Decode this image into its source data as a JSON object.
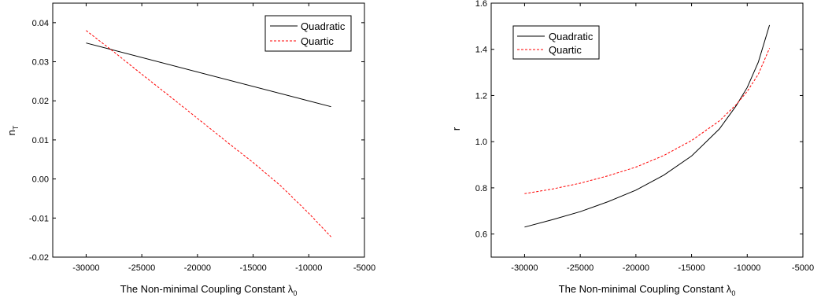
{
  "chart_data": [
    {
      "type": "line",
      "title": "",
      "xlabel": "The Non-minimal Coupling Constant λ",
      "xlabel_subscript": "0",
      "ylabel": "n",
      "ylabel_subscript": "T",
      "xlim": [
        -33000,
        -5000
      ],
      "ylim": [
        -0.02,
        0.045
      ],
      "xticks": [
        -30000,
        -25000,
        -20000,
        -15000,
        -10000,
        -5000
      ],
      "yticks": [
        -0.02,
        -0.01,
        0.0,
        0.01,
        0.02,
        0.03,
        0.04
      ],
      "xtick_labels": [
        "-30000",
        "-25000",
        "-20000",
        "-15000",
        "-10000",
        "-5000"
      ],
      "ytick_labels": [
        "-0.02",
        "-0.01",
        "0.00",
        "0.01",
        "0.02",
        "0.03",
        "0.04"
      ],
      "grid": false,
      "legend_position": "top-right",
      "series": [
        {
          "name": "Quadratic",
          "color": "#000000",
          "dash": "solid",
          "x": [
            -30000,
            -8000
          ],
          "y": [
            0.0348,
            0.0185
          ]
        },
        {
          "name": "Quartic",
          "color": "#ff0000",
          "dash": "dashed",
          "x": [
            -30000,
            -27500,
            -25000,
            -22500,
            -20000,
            -17500,
            -15000,
            -12500,
            -10000,
            -8000
          ],
          "y": [
            0.038,
            0.0325,
            0.0268,
            0.0212,
            0.0155,
            0.0098,
            0.0042,
            -0.0018,
            -0.0088,
            -0.0148
          ]
        }
      ]
    },
    {
      "type": "line",
      "title": "",
      "xlabel": "The Non-minimal Coupling Constant λ",
      "xlabel_subscript": "0",
      "ylabel": "r",
      "ylabel_subscript": "",
      "xlim": [
        -33000,
        -5000
      ],
      "ylim": [
        0.5,
        1.6
      ],
      "xticks": [
        -30000,
        -25000,
        -20000,
        -15000,
        -10000,
        -5000
      ],
      "yticks": [
        0.6,
        0.8,
        1.0,
        1.2,
        1.4,
        1.6
      ],
      "xtick_labels": [
        "-30000",
        "-25000",
        "-20000",
        "-15000",
        "-10000",
        "-5000"
      ],
      "ytick_labels": [
        "0.6",
        "0.8",
        "1.0",
        "1.2",
        "1.4",
        "1.6"
      ],
      "grid": false,
      "legend_position": "top-left",
      "series": [
        {
          "name": "Quadratic",
          "color": "#000000",
          "dash": "solid",
          "x": [
            -30000,
            -27500,
            -25000,
            -22500,
            -20000,
            -17500,
            -15000,
            -12500,
            -11000,
            -10000,
            -9000,
            -8000
          ],
          "y": [
            0.63,
            0.662,
            0.697,
            0.74,
            0.79,
            0.855,
            0.938,
            1.055,
            1.155,
            1.235,
            1.345,
            1.505
          ]
        },
        {
          "name": "Quartic",
          "color": "#ff0000",
          "dash": "dashed",
          "x": [
            -30000,
            -27500,
            -25000,
            -22500,
            -20000,
            -17500,
            -15000,
            -12500,
            -11000,
            -10000,
            -9000,
            -8000
          ],
          "y": [
            0.775,
            0.795,
            0.82,
            0.852,
            0.89,
            0.94,
            1.005,
            1.09,
            1.16,
            1.218,
            1.292,
            1.405
          ]
        }
      ]
    }
  ]
}
